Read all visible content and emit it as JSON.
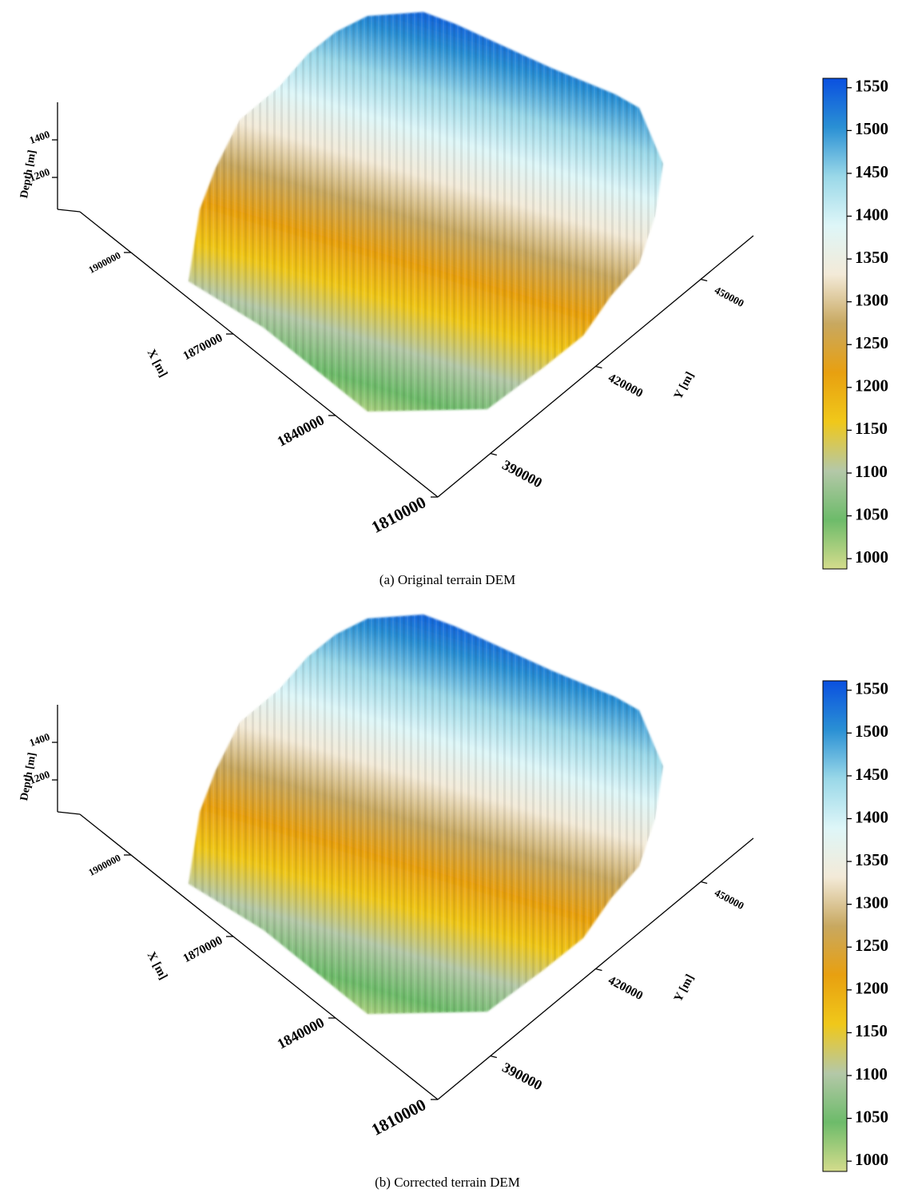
{
  "chart_data": [
    {
      "type": "surface3d",
      "caption": "(a) Original terrain DEM",
      "xlabel": "X [m]",
      "ylabel": "Y [m]",
      "zlabel": "Depth [m]",
      "xlim": [
        1810000,
        1915000
      ],
      "xticks": [
        1810000,
        1840000,
        1870000,
        1900000
      ],
      "ylim": [
        375000,
        465000
      ],
      "yticks": [
        390000,
        420000,
        450000
      ],
      "zlim": [
        1030,
        1600
      ],
      "zticks": [
        1200,
        1400
      ],
      "clim": [
        988,
        1561
      ],
      "cticks": [
        1000,
        1050,
        1100,
        1150,
        1200,
        1250,
        1300,
        1350,
        1400,
        1450,
        1500,
        1550
      ],
      "colormap": [
        "#d4dc8c",
        "#6dbb6a",
        "#b4c8a8",
        "#f0c81a",
        "#e8a010",
        "#c8a860",
        "#f3ead8",
        "#def6f8",
        "#9ad8e8",
        "#2a90d4",
        "#0a50e0"
      ]
    },
    {
      "type": "surface3d",
      "caption": "(b) Corrected terrain DEM",
      "xlabel": "X [m]",
      "ylabel": "Y [m]",
      "zlabel": "Depth [m]",
      "xlim": [
        1810000,
        1915000
      ],
      "xticks": [
        1810000,
        1840000,
        1870000,
        1900000
      ],
      "ylim": [
        375000,
        465000
      ],
      "yticks": [
        390000,
        420000,
        450000
      ],
      "zlim": [
        1030,
        1600
      ],
      "zticks": [
        1200,
        1400
      ],
      "clim": [
        988,
        1561
      ],
      "cticks": [
        1000,
        1050,
        1100,
        1150,
        1200,
        1250,
        1300,
        1350,
        1400,
        1450,
        1500,
        1550
      ],
      "colormap": [
        "#d4dc8c",
        "#6dbb6a",
        "#b4c8a8",
        "#f0c81a",
        "#e8a010",
        "#c8a860",
        "#f3ead8",
        "#def6f8",
        "#9ad8e8",
        "#2a90d4",
        "#0a50e0"
      ]
    }
  ]
}
